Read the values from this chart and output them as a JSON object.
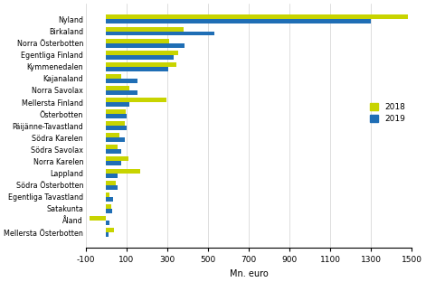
{
  "categories": [
    "Nyland",
    "Birkaland",
    "Norra Österbotten",
    "Egentliga Finland",
    "Kymmenedalen",
    "Kajanaland",
    "Norra Savolax",
    "Mellersta Finland",
    "Österbotten",
    "Päijänne-Tavastland",
    "Södra Karelen",
    "Södra Savolax",
    "Norra Karelen",
    "Lappland",
    "Södra Österbotten",
    "Egentliga Tavastland",
    "Satakunta",
    "Åland",
    "Mellersta Österbotten"
  ],
  "values_2018": [
    1480,
    380,
    310,
    355,
    345,
    75,
    115,
    295,
    95,
    90,
    65,
    55,
    110,
    165,
    48,
    18,
    25,
    -80,
    40
  ],
  "values_2019": [
    1300,
    530,
    385,
    330,
    305,
    155,
    155,
    115,
    100,
    100,
    90,
    72,
    72,
    58,
    55,
    35,
    30,
    18,
    10
  ],
  "color_2018": "#c8d400",
  "color_2019": "#1f6eb5",
  "xlabel": "Mn. euro",
  "xlim": [
    -100,
    1500
  ],
  "xticks": [
    -100,
    100,
    300,
    500,
    700,
    900,
    1100,
    1300,
    1500
  ],
  "legend_labels": [
    "2018",
    "2019"
  ],
  "bar_height": 0.38,
  "figsize": [
    4.71,
    3.12
  ],
  "dpi": 100
}
